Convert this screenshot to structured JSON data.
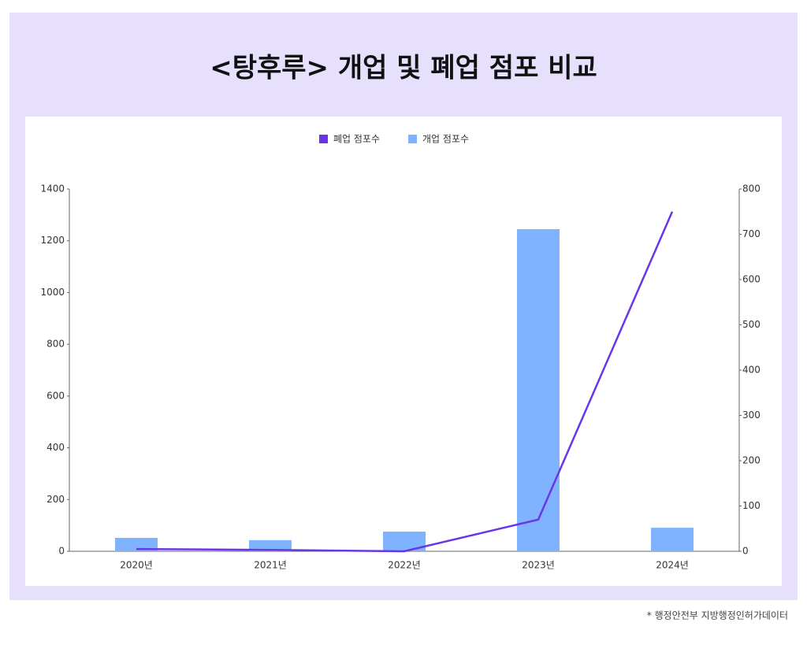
{
  "chart_data": {
    "type": "bar",
    "title": "<탕후루> 개업 및 폐업 점포 비교",
    "categories": [
      "2020년",
      "2021년",
      "2022년",
      "2023년",
      "2024년"
    ],
    "series": [
      {
        "name": "폐업 점포수",
        "type": "line",
        "axis": "y2",
        "color": "#6a35e8",
        "values": [
          5,
          3,
          0,
          70,
          750
        ]
      },
      {
        "name": "개업 점포수",
        "type": "bar",
        "axis": "y",
        "color": "#80b3ff",
        "values": [
          52,
          43,
          76,
          1245,
          91
        ]
      }
    ],
    "ylim": [
      0,
      1400
    ],
    "yticks": [
      0,
      200,
      400,
      600,
      800,
      1000,
      1200,
      1400
    ],
    "y2lim": [
      0,
      800
    ],
    "y2ticks": [
      0,
      100,
      200,
      300,
      400,
      500,
      600,
      700,
      800
    ],
    "grid": false,
    "legend": "top",
    "note": "* 행정안전부 지방행정인허가데이터"
  }
}
